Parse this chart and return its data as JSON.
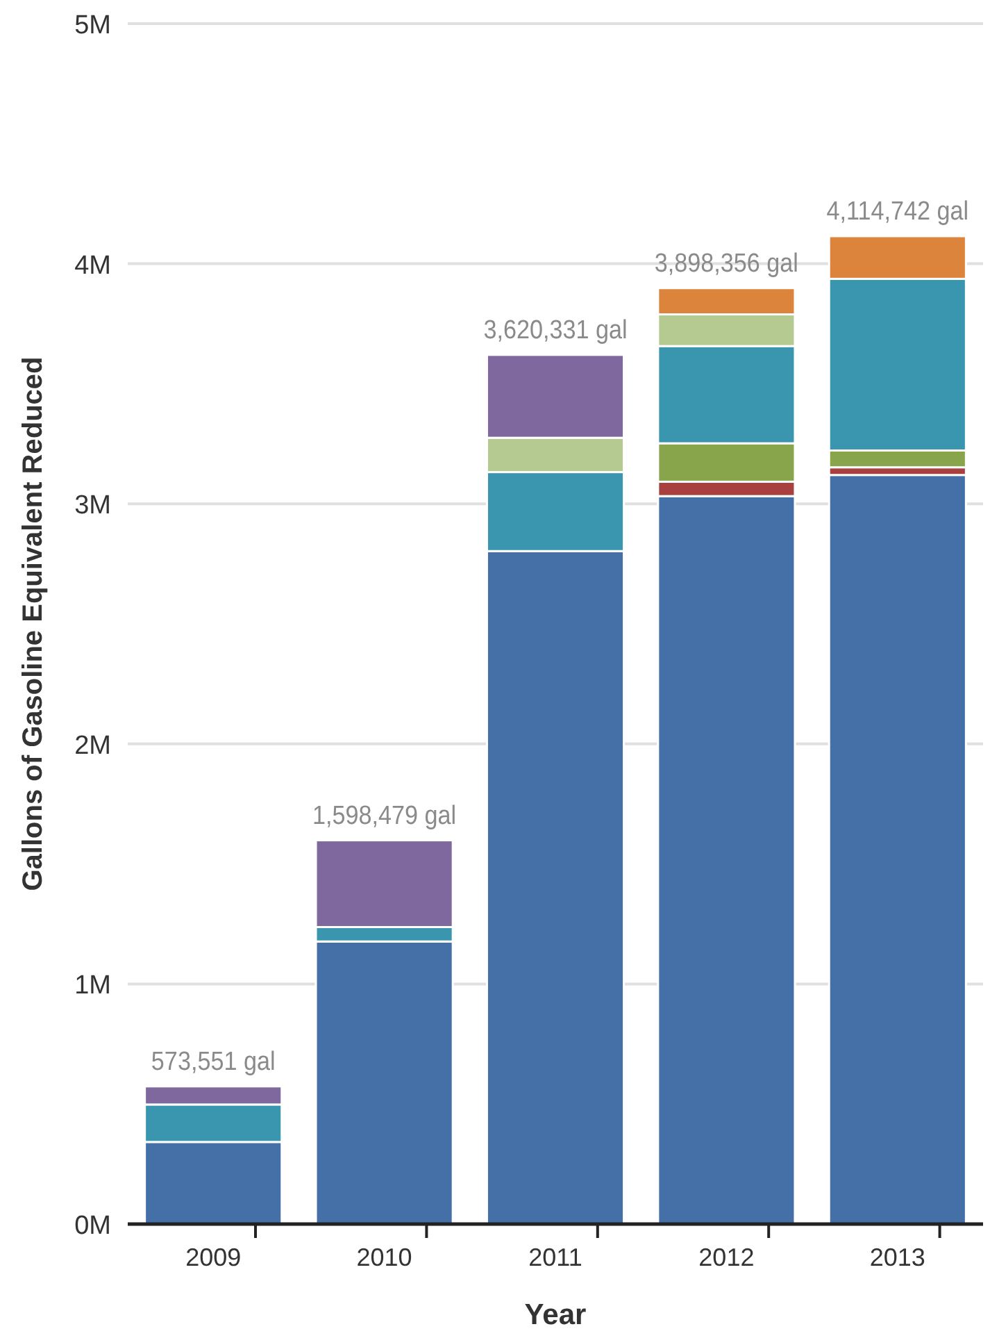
{
  "chart_data": {
    "type": "bar",
    "stacked": true,
    "xlabel": "Year",
    "ylabel": "Gallons of Gasoline Equivalent Reduced",
    "categories": [
      "2009",
      "2010",
      "2011",
      "2012",
      "2013"
    ],
    "series": [
      {
        "color": "#4470a7",
        "values": [
          342000,
          1177000,
          2803000,
          3032000,
          3120000
        ]
      },
      {
        "color": "#a8403f",
        "values": [
          null,
          null,
          null,
          60000,
          32000
        ]
      },
      {
        "color": "#88a54c",
        "values": [
          null,
          null,
          null,
          160000,
          70000
        ]
      },
      {
        "color": "#3a96ae",
        "values": [
          156000,
          60000,
          329000,
          405000,
          715000
        ]
      },
      {
        "color": "#b5ca90",
        "values": [
          null,
          null,
          143000,
          132000,
          null
        ]
      },
      {
        "color": "#7e689d",
        "values": [
          75551,
          361479,
          345331,
          null,
          null
        ]
      },
      {
        "color": "#dc843b",
        "values": [
          null,
          null,
          null,
          109356,
          177742
        ]
      }
    ],
    "totals": [
      "573,551 gal",
      "1,598,479 gal",
      "3,620,331 gal",
      "3,898,356 gal",
      "4,114,742 gal"
    ],
    "ylim": [
      0,
      5000000
    ],
    "yticks": [
      {
        "value": 0,
        "label": "0M"
      },
      {
        "value": 1000000,
        "label": "1M"
      },
      {
        "value": 2000000,
        "label": "2M"
      },
      {
        "value": 3000000,
        "label": "3M"
      },
      {
        "value": 4000000,
        "label": "4M"
      },
      {
        "value": 5000000,
        "label": "5M"
      }
    ],
    "grid": "y"
  }
}
